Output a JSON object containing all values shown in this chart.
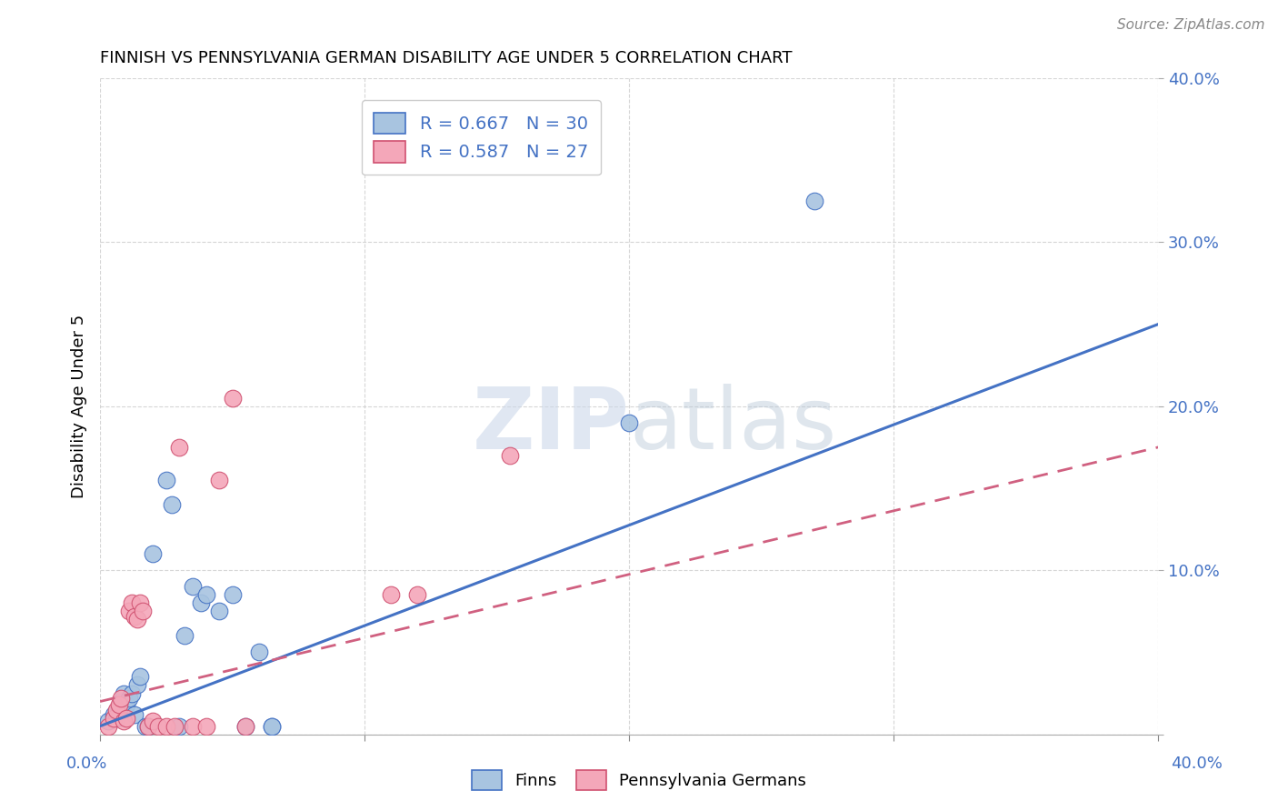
{
  "title": "FINNISH VS PENNSYLVANIA GERMAN DISABILITY AGE UNDER 5 CORRELATION CHART",
  "source": "Source: ZipAtlas.com",
  "ylabel": "Disability Age Under 5",
  "xlim": [
    0,
    0.4
  ],
  "ylim": [
    0,
    0.4
  ],
  "finns_color": "#a8c4e0",
  "finns_line_color": "#4472c4",
  "pa_color": "#f4a7b9",
  "pa_line_color": "#d05070",
  "pa_dash_color": "#d06080",
  "watermark_color": "#ccd8ea",
  "background_color": "#ffffff",
  "grid_color": "#cccccc",
  "finns_scatter": [
    [
      0.003,
      0.008
    ],
    [
      0.005,
      0.012
    ],
    [
      0.006,
      0.01
    ],
    [
      0.007,
      0.015
    ],
    [
      0.008,
      0.02
    ],
    [
      0.009,
      0.025
    ],
    [
      0.01,
      0.018
    ],
    [
      0.011,
      0.022
    ],
    [
      0.012,
      0.025
    ],
    [
      0.013,
      0.012
    ],
    [
      0.014,
      0.03
    ],
    [
      0.015,
      0.035
    ],
    [
      0.017,
      0.005
    ],
    [
      0.018,
      0.005
    ],
    [
      0.02,
      0.11
    ],
    [
      0.025,
      0.155
    ],
    [
      0.027,
      0.14
    ],
    [
      0.03,
      0.005
    ],
    [
      0.032,
      0.06
    ],
    [
      0.035,
      0.09
    ],
    [
      0.038,
      0.08
    ],
    [
      0.04,
      0.085
    ],
    [
      0.045,
      0.075
    ],
    [
      0.05,
      0.085
    ],
    [
      0.055,
      0.005
    ],
    [
      0.06,
      0.05
    ],
    [
      0.065,
      0.005
    ],
    [
      0.065,
      0.005
    ],
    [
      0.2,
      0.19
    ],
    [
      0.27,
      0.325
    ]
  ],
  "pa_scatter": [
    [
      0.003,
      0.005
    ],
    [
      0.005,
      0.01
    ],
    [
      0.006,
      0.015
    ],
    [
      0.007,
      0.018
    ],
    [
      0.008,
      0.022
    ],
    [
      0.009,
      0.008
    ],
    [
      0.01,
      0.01
    ],
    [
      0.011,
      0.075
    ],
    [
      0.012,
      0.08
    ],
    [
      0.013,
      0.072
    ],
    [
      0.014,
      0.07
    ],
    [
      0.015,
      0.08
    ],
    [
      0.016,
      0.075
    ],
    [
      0.018,
      0.005
    ],
    [
      0.02,
      0.008
    ],
    [
      0.022,
      0.005
    ],
    [
      0.025,
      0.005
    ],
    [
      0.028,
      0.005
    ],
    [
      0.03,
      0.175
    ],
    [
      0.035,
      0.005
    ],
    [
      0.04,
      0.005
    ],
    [
      0.045,
      0.155
    ],
    [
      0.05,
      0.205
    ],
    [
      0.055,
      0.005
    ],
    [
      0.11,
      0.085
    ],
    [
      0.12,
      0.085
    ],
    [
      0.155,
      0.17
    ]
  ],
  "finns_line": {
    "x0": 0.0,
    "y0": 0.005,
    "x1": 0.4,
    "y1": 0.25
  },
  "pa_line": {
    "x0": 0.0,
    "y0": 0.02,
    "x1": 0.4,
    "y1": 0.175
  }
}
